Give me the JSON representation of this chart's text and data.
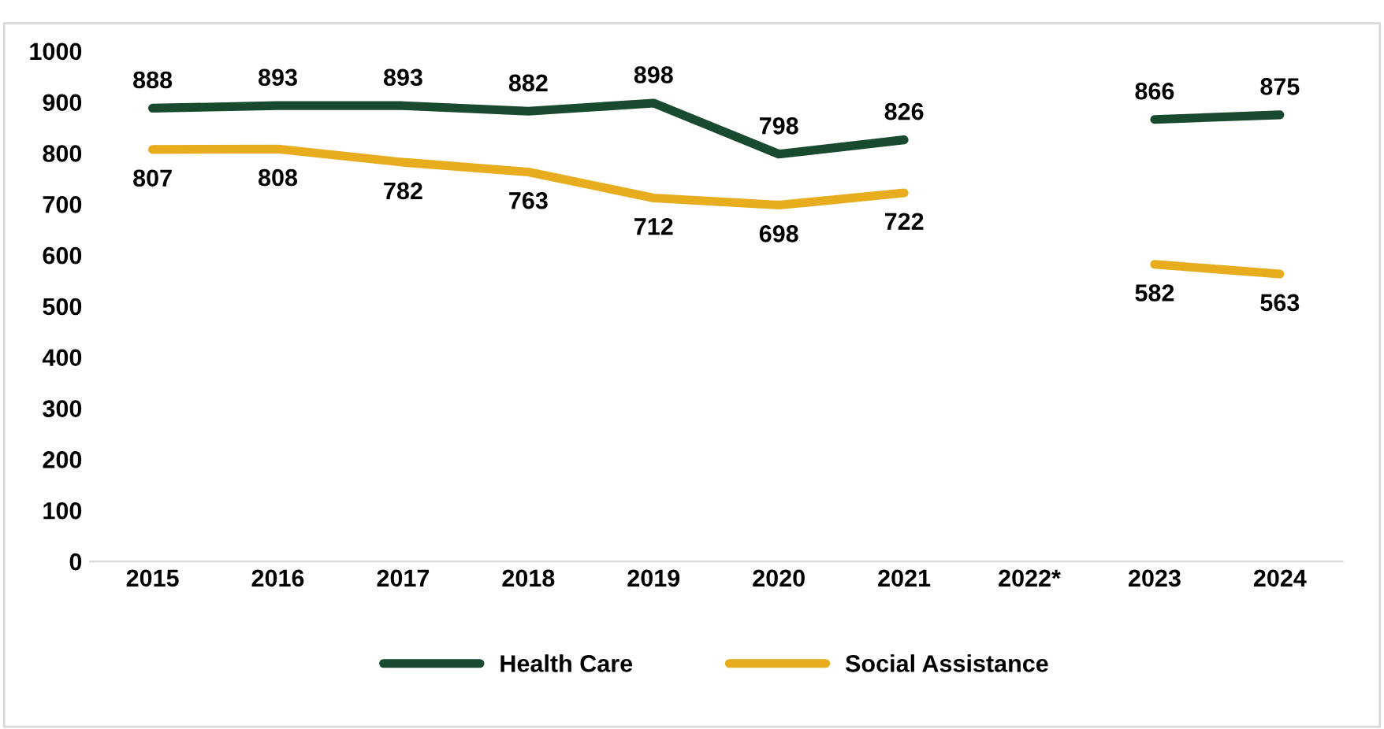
{
  "chart_data": {
    "type": "line",
    "categories": [
      "2015",
      "2016",
      "2017",
      "2018",
      "2019",
      "2020",
      "2021",
      "2022*",
      "2023",
      "2024"
    ],
    "series": [
      {
        "name": "Health Care",
        "color": "#174a2e",
        "values": [
          888,
          893,
          893,
          882,
          898,
          798,
          826,
          null,
          866,
          875
        ]
      },
      {
        "name": "Social Assistance",
        "color": "#e8ad1f",
        "values": [
          807,
          808,
          782,
          763,
          712,
          698,
          722,
          null,
          582,
          563
        ]
      }
    ],
    "ylim": [
      0,
      1000
    ],
    "yticks": [
      0,
      100,
      200,
      300,
      400,
      500,
      600,
      700,
      800,
      900,
      1000
    ],
    "grid": false,
    "legend": "bottom",
    "data_labels": true,
    "marker": "none",
    "line_style": "solid"
  }
}
